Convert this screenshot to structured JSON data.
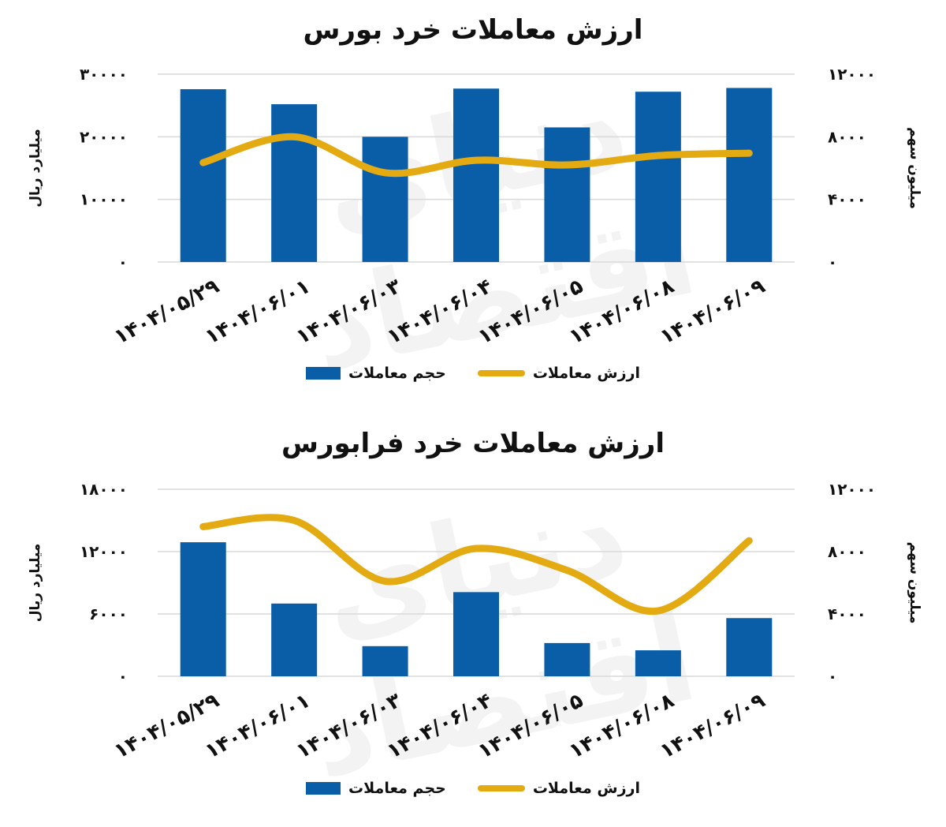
{
  "chart_data": [
    {
      "type": "bar",
      "title": "ارزش معاملات خرد بورس",
      "categories": [
        "1404/05/29",
        "1404/06/01",
        "1404/06/03",
        "1404/06/04",
        "1404/06/05",
        "1404/06/08",
        "1404/06/09"
      ],
      "category_labels": [
        "۱۴۰۴/۰۵/۲۹",
        "۱۴۰۴/۰۶/۰۱",
        "۱۴۰۴/۰۶/۰۳",
        "۱۴۰۴/۰۶/۰۴",
        "۱۴۰۴/۰۶/۰۵",
        "۱۴۰۴/۰۶/۰۸",
        "۱۴۰۴/۰۶/۰۹"
      ],
      "ylabel_left": "میلیارد ریال",
      "ylabel_right": "میلیون سهم",
      "ylim_left": [
        0,
        30000
      ],
      "ylim_right": [
        0,
        12000
      ],
      "yticks_left": [
        0,
        10000,
        20000,
        30000
      ],
      "yticks_right": [
        0,
        4000,
        8000,
        12000
      ],
      "ytick_labels_left": [
        "۰",
        "۱۰۰۰۰",
        "۲۰۰۰۰",
        "۳۰۰۰۰"
      ],
      "ytick_labels_right": [
        "۰",
        "۴۰۰۰",
        "۸۰۰۰",
        "۱۲۰۰۰"
      ],
      "grid": true,
      "legend_position": "bottom",
      "series": [
        {
          "name": "حجم معاملات",
          "kind": "bar",
          "axis": "left",
          "color": "#0a5ea8",
          "values": [
            27600,
            25200,
            20000,
            27700,
            21500,
            27200,
            27800
          ]
        },
        {
          "name": "ارزش معاملات",
          "kind": "line",
          "axis": "right",
          "color": "#e3aa12",
          "values": [
            6350,
            8000,
            5700,
            6500,
            6200,
            6800,
            6950
          ]
        }
      ]
    },
    {
      "type": "bar",
      "title": "ارزش معاملات خرد فرابورس",
      "categories": [
        "1404/05/29",
        "1404/06/01",
        "1404/06/03",
        "1404/06/04",
        "1404/06/05",
        "1404/06/08",
        "1404/06/09"
      ],
      "category_labels": [
        "۱۴۰۴/۰۵/۲۹",
        "۱۴۰۴/۰۶/۰۱",
        "۱۴۰۴/۰۶/۰۳",
        "۱۴۰۴/۰۶/۰۴",
        "۱۴۰۴/۰۶/۰۵",
        "۱۴۰۴/۰۶/۰۸",
        "۱۴۰۴/۰۶/۰۹"
      ],
      "ylabel_left": "میلیارد ریال",
      "ylabel_right": "میلیون سهم",
      "ylim_left": [
        0,
        18000
      ],
      "ylim_right": [
        0,
        12000
      ],
      "yticks_left": [
        0,
        6000,
        12000,
        18000
      ],
      "yticks_right": [
        0,
        4000,
        8000,
        12000
      ],
      "ytick_labels_left": [
        "۰",
        "۶۰۰۰",
        "۱۲۰۰۰",
        "۱۸۰۰۰"
      ],
      "ytick_labels_right": [
        "۰",
        "۴۰۰۰",
        "۸۰۰۰",
        "۱۲۰۰۰"
      ],
      "grid": true,
      "legend_position": "bottom",
      "series": [
        {
          "name": "حجم معاملات",
          "kind": "bar",
          "axis": "left",
          "color": "#0a5ea8",
          "values": [
            12900,
            7000,
            2900,
            8100,
            3200,
            2500,
            5600
          ]
        },
        {
          "name": "ارزش معاملات",
          "kind": "line",
          "axis": "right",
          "color": "#e3aa12",
          "values": [
            9600,
            10000,
            6100,
            8200,
            6800,
            4200,
            8700
          ]
        }
      ]
    }
  ],
  "watermark": "دنیای اقتصاد"
}
